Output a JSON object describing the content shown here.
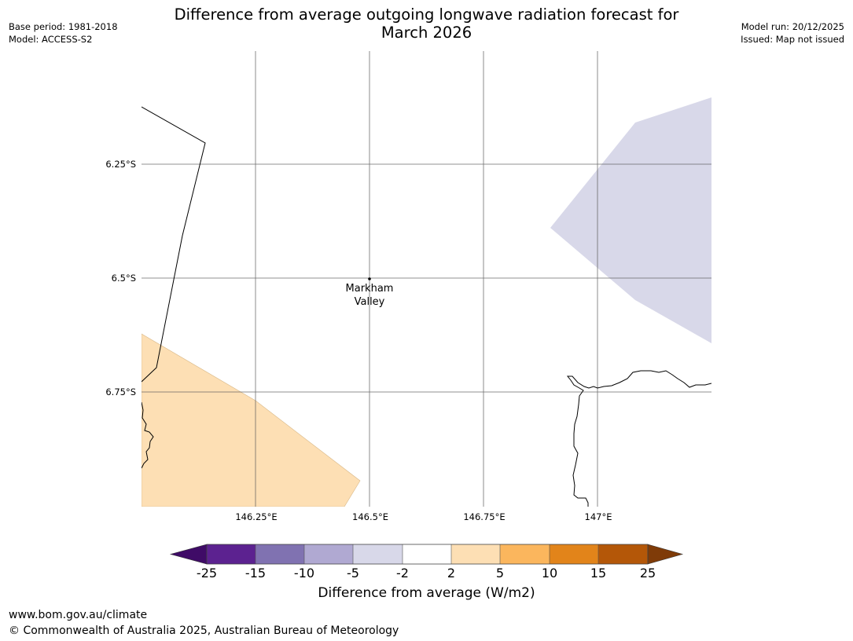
{
  "title": {
    "line1": "Difference from average outgoing longwave radiation forecast for",
    "line2": "March 2026"
  },
  "meta_left": {
    "base_period": "Base period: 1981-2018",
    "model": "Model: ACCESS-S2"
  },
  "meta_right": {
    "model_run": "Model run: 20/12/2025",
    "issued": "Issued: Map not issued"
  },
  "map": {
    "latitude_labels": [
      "6.25°S",
      "6.5°S",
      "6.75°S"
    ],
    "longitude_labels": [
      "146.25°E",
      "146.5°E",
      "146.75°E",
      "147°E"
    ],
    "place": {
      "name_line1": "Markham",
      "name_line2": "Valley"
    },
    "regions": [
      {
        "name": "negative-anomaly-area",
        "category": "-5 to -2",
        "color": "#d8d8e9"
      },
      {
        "name": "positive-anomaly-area",
        "category": "2 to 5",
        "color": "#fddfb4"
      }
    ]
  },
  "colorbar": {
    "ticks": [
      "-25",
      "-15",
      "-10",
      "-5",
      "-2",
      "2",
      "5",
      "10",
      "15",
      "25"
    ],
    "colors": [
      "#3f0b67",
      "#5c2290",
      "#8072b1",
      "#b0a9d2",
      "#d8d8e9",
      "#ffffff",
      "#fddfb4",
      "#fbb65d",
      "#e2841a",
      "#b45708",
      "#7f3b08"
    ],
    "label": "Difference from average (W/m2)"
  },
  "footer": {
    "url": "www.bom.gov.au/climate",
    "copyright": "© Commonwealth of Australia 2025, Australian Bureau of Meteorology"
  }
}
